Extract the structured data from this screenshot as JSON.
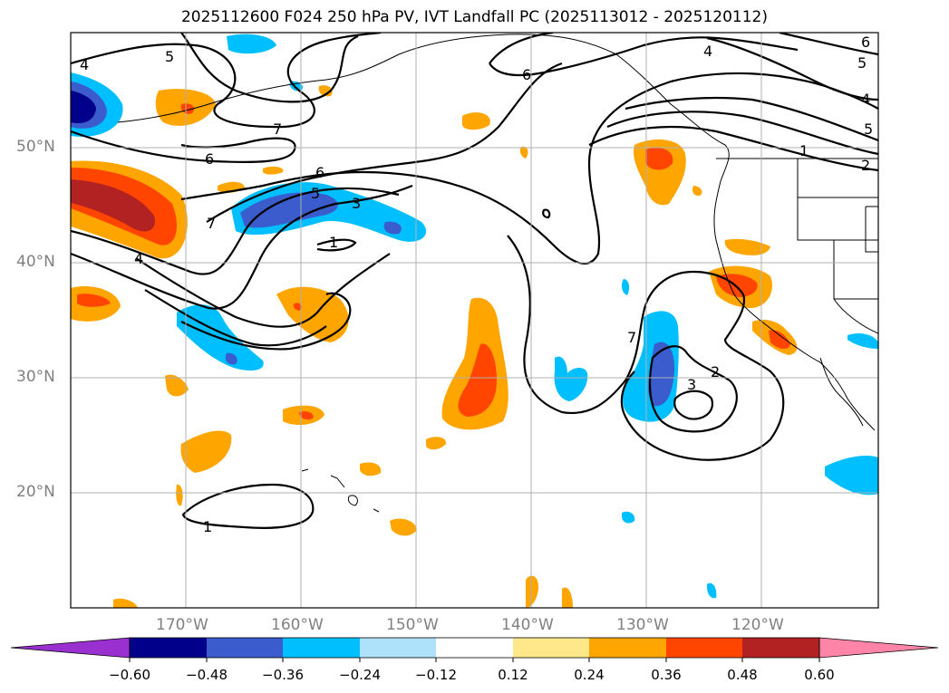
{
  "title": "2025112600 F024 250 hPa PV, IVT Landfall PC (2025113012 - 2025120112)",
  "map": {
    "lat_labels": [
      "50°N",
      "40°N",
      "30°N",
      "20°N"
    ],
    "lon_labels": [
      "170°W",
      "160°W",
      "150°W",
      "140°W",
      "130°W",
      "120°W"
    ],
    "contour_labels": [
      "4",
      "5",
      "7",
      "6",
      "6",
      "5",
      "3",
      "1",
      "7",
      "4",
      "6",
      "4",
      "5",
      "4",
      "5",
      "1",
      "2",
      "7",
      "3",
      "2",
      "1",
      "6"
    ]
  },
  "colorbar": {
    "ticks": [
      "−0.60",
      "−0.48",
      "−0.36",
      "−0.24",
      "−0.12",
      "0.12",
      "0.24",
      "0.36",
      "0.48",
      "0.60"
    ],
    "colors": [
      "#9b30d0",
      "#00008b",
      "#3a5ccc",
      "#00bfff",
      "#aee2fa",
      "#ffffff",
      "#ffe88a",
      "#ffa500",
      "#ff4500",
      "#b22222",
      "#ff85a8"
    ]
  }
}
